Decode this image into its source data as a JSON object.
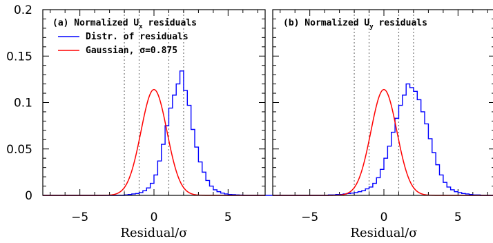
{
  "colors": {
    "histogram": "#0000ff",
    "gaussian": "#ff0000",
    "guide": "#777777",
    "axis": "#000000"
  },
  "chart_data": [
    {
      "type": "line",
      "panel": "a",
      "title_parts": [
        "(a) Normalized U",
        "x",
        " residuals"
      ],
      "xlabel": "Residual/σ",
      "ylabel": "",
      "xlim": [
        -7.5,
        7.5
      ],
      "ylim": [
        0,
        0.2
      ],
      "yticks": [
        "0",
        "0.05",
        "0.1",
        "0.15",
        "0.2"
      ],
      "xticks": [
        "−5",
        "0",
        "5"
      ],
      "vlines": [
        -2,
        -1,
        1,
        2
      ],
      "grid": false,
      "legend_position": "top-left",
      "legend": [
        "Distr. of residuals",
        "Gaussian, σ=0.875"
      ],
      "gaussian_sigma": 0.875,
      "series": [
        {
          "name": "Distr. of residuals",
          "style": "step",
          "bin_width": 0.25,
          "bin_start": -7.5,
          "values": [
            0,
            0,
            0,
            0,
            0,
            0,
            0,
            0,
            0,
            0,
            0,
            0,
            0,
            0,
            0,
            0,
            0,
            0,
            0,
            0,
            0,
            0,
            0.0005,
            0.001,
            0.0015,
            0.002,
            0.003,
            0.005,
            0.008,
            0.013,
            0.022,
            0.037,
            0.055,
            0.075,
            0.094,
            0.108,
            0.12,
            0.134,
            0.113,
            0.097,
            0.071,
            0.052,
            0.036,
            0.025,
            0.016,
            0.01,
            0.006,
            0.004,
            0.0025,
            0.0015,
            0.001,
            0.0008,
            0.0005,
            0.0003,
            0,
            0,
            0,
            0,
            0,
            0,
            0,
            0
          ]
        },
        {
          "name": "Gaussian, σ=0.875",
          "style": "curve",
          "sigma": 0.875,
          "peak": 0.114,
          "mu": 0
        }
      ]
    },
    {
      "type": "line",
      "panel": "b",
      "title_parts": [
        "(b) Normalized U",
        "y",
        " residuals"
      ],
      "xlabel": "Residual/σ",
      "ylabel": "",
      "xlim": [
        -7.5,
        7.5
      ],
      "ylim": [
        0,
        0.2
      ],
      "xticks": [
        "−5",
        "0",
        "5"
      ],
      "vlines": [
        -2,
        -1,
        1,
        2
      ],
      "grid": false,
      "series": [
        {
          "name": "histogram",
          "style": "step",
          "bin_width": 0.25,
          "bin_start": -7.5,
          "values": [
            0,
            0,
            0,
            0,
            0,
            0,
            0,
            0,
            0,
            0,
            0,
            0,
            0,
            0,
            0,
            0.0005,
            0.0005,
            0.001,
            0.001,
            0.0015,
            0.002,
            0.0025,
            0.003,
            0.004,
            0.005,
            0.007,
            0.009,
            0.013,
            0.019,
            0.028,
            0.04,
            0.053,
            0.068,
            0.083,
            0.097,
            0.108,
            0.12,
            0.116,
            0.112,
            0.103,
            0.09,
            0.077,
            0.061,
            0.046,
            0.033,
            0.022,
            0.014,
            0.009,
            0.006,
            0.004,
            0.003,
            0.002,
            0.0015,
            0.001,
            0.0005,
            0.0005,
            0,
            0,
            0,
            0,
            0
          ]
        },
        {
          "name": "curve",
          "style": "curve",
          "sigma": 0.875,
          "peak": 0.114,
          "mu": 0
        }
      ]
    }
  ]
}
